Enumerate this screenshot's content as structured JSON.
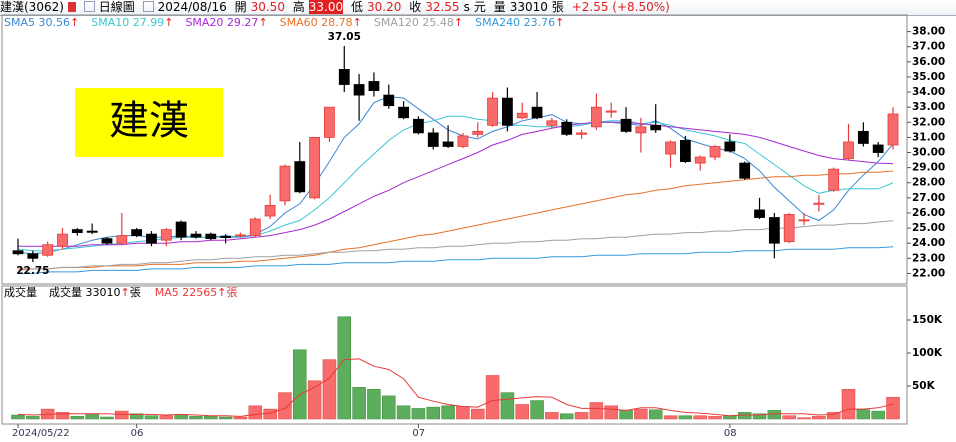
{
  "header": {
    "name": "建漢(3062)",
    "period": "日線圖",
    "date": "2024/08/16",
    "open_label": "開",
    "open": "30.50",
    "high_label": "高",
    "high": "33.00",
    "low_label": "低",
    "low": "30.20",
    "close_label": "收",
    "close": "32.55",
    "s": "s",
    "unit": "元",
    "volume_label": "量",
    "volume": "33010",
    "volume_unit": "張",
    "change": "+2.55 (+8.50%)"
  },
  "chart_data": {
    "type": "candlestick",
    "label_box": "建漢",
    "trend": "↑",
    "categories": [
      "2024/05/22",
      null,
      null,
      null,
      null,
      null,
      null,
      null,
      "06",
      null,
      null,
      null,
      null,
      null,
      null,
      null,
      null,
      null,
      null,
      null,
      null,
      null,
      null,
      null,
      null,
      null,
      null,
      "07",
      null,
      null,
      null,
      null,
      null,
      null,
      null,
      null,
      null,
      null,
      null,
      null,
      null,
      null,
      null,
      null,
      null,
      null,
      null,
      null,
      "08",
      null,
      null,
      null,
      null,
      null,
      null,
      null,
      null,
      null,
      null,
      null
    ],
    "open": [
      23.5,
      23.3,
      23.2,
      23.8,
      24.9,
      24.8,
      24.3,
      24.0,
      24.9,
      24.6,
      24.2,
      25.4,
      24.6,
      24.6,
      24.45,
      24.5,
      24.5,
      25.8,
      26.8,
      29.4,
      27.0,
      31.0,
      35.5,
      34.5,
      34.7,
      33.8,
      33.0,
      32.2,
      31.3,
      30.7,
      30.4,
      31.2,
      31.8,
      33.6,
      32.3,
      33.0,
      31.8,
      32.0,
      31.2,
      31.7,
      32.7,
      32.2,
      31.3,
      31.8,
      29.9,
      30.8,
      29.3,
      29.7,
      30.7,
      29.3,
      26.2,
      25.7,
      24.1,
      25.5,
      26.6,
      27.5,
      29.6,
      31.4,
      30.5,
      30.5
    ],
    "high": [
      24.3,
      23.5,
      24.1,
      25.0,
      25.0,
      25.3,
      24.4,
      26.0,
      25.0,
      24.8,
      25.0,
      25.5,
      24.8,
      24.7,
      24.6,
      24.7,
      25.7,
      27.2,
      29.2,
      30.7,
      31.0,
      33.0,
      37.05,
      35.2,
      35.3,
      34.5,
      33.4,
      32.4,
      31.6,
      31.8,
      31.3,
      32.0,
      34.0,
      34.3,
      33.3,
      34.0,
      32.3,
      32.2,
      31.5,
      33.9,
      33.3,
      33.0,
      32.3,
      33.2,
      30.8,
      31.1,
      29.8,
      30.5,
      31.2,
      29.4,
      27.0,
      26.0,
      26.0,
      26.0,
      27.2,
      29.0,
      31.9,
      32.0,
      30.7,
      33.0
    ],
    "low": [
      23.2,
      22.75,
      23.1,
      23.6,
      24.5,
      24.6,
      23.9,
      23.9,
      24.4,
      23.8,
      23.8,
      24.2,
      24.3,
      24.2,
      24.0,
      24.4,
      24.4,
      25.6,
      26.5,
      27.3,
      26.9,
      30.7,
      34.0,
      32.1,
      33.7,
      32.9,
      32.2,
      31.2,
      30.2,
      30.3,
      30.3,
      31.0,
      31.7,
      31.4,
      32.2,
      32.2,
      31.6,
      31.1,
      30.9,
      31.5,
      32.3,
      31.3,
      30.0,
      31.3,
      29.0,
      29.3,
      28.8,
      29.5,
      30.0,
      28.2,
      25.6,
      23.0,
      24.0,
      25.2,
      26.1,
      27.4,
      29.5,
      30.4,
      29.7,
      30.2
    ],
    "close": [
      23.3,
      23.0,
      23.9,
      24.6,
      24.7,
      24.75,
      24.0,
      24.5,
      24.5,
      24.0,
      24.9,
      24.4,
      24.4,
      24.3,
      24.4,
      24.55,
      25.6,
      26.5,
      29.1,
      27.4,
      31.0,
      33.0,
      34.5,
      33.8,
      34.1,
      33.1,
      32.3,
      31.3,
      30.4,
      30.4,
      31.1,
      31.4,
      33.6,
      31.8,
      32.6,
      32.3,
      32.1,
      31.2,
      31.3,
      33.0,
      32.75,
      31.4,
      31.7,
      31.5,
      30.7,
      29.4,
      29.7,
      30.4,
      30.1,
      28.3,
      25.7,
      24.0,
      25.9,
      25.55,
      26.65,
      28.9,
      30.7,
      30.6,
      30.0,
      32.55
    ],
    "up_color": "#f86b6b",
    "up_border": "#e83a3a",
    "down_color": "#000000",
    "ylim": [
      21.3,
      39.1
    ],
    "yticks": [
      {
        "value": 22,
        "label": "22.00"
      },
      {
        "value": 23,
        "label": "23.00"
      },
      {
        "value": 24,
        "label": "24.00"
      },
      {
        "value": 25,
        "label": "25.00"
      },
      {
        "value": 26,
        "label": "26.00"
      },
      {
        "value": 27,
        "label": "27.00"
      },
      {
        "value": 28,
        "label": "28.00"
      },
      {
        "value": 29,
        "label": "29.00"
      },
      {
        "value": 30,
        "label": "30.00"
      },
      {
        "value": 31,
        "label": "31.00"
      },
      {
        "value": 32,
        "label": "32.00"
      },
      {
        "value": 33,
        "label": "33.00"
      },
      {
        "value": 34,
        "label": "34.00"
      },
      {
        "value": 35,
        "label": "35.00"
      },
      {
        "value": 36,
        "label": "36.00"
      },
      {
        "value": 37,
        "label": "37.00"
      },
      {
        "value": 38,
        "label": "38.00"
      }
    ],
    "series": [
      {
        "name": "SMA5",
        "color": "#3a86d4",
        "values": [
          23.4,
          23.3,
          23.4,
          23.6,
          23.9,
          24.2,
          24.4,
          24.5,
          24.5,
          24.4,
          24.4,
          24.5,
          24.4,
          24.4,
          24.5,
          24.4,
          24.6,
          25.1,
          26.0,
          26.6,
          27.9,
          29.4,
          31.0,
          31.9,
          33.3,
          33.7,
          33.6,
          32.9,
          32.2,
          31.5,
          31.1,
          30.9,
          31.4,
          31.7,
          32.1,
          32.3,
          32.5,
          32.0,
          31.9,
          32.0,
          32.0,
          31.9,
          31.8,
          32.1,
          31.6,
          30.9,
          30.6,
          30.3,
          30.1,
          29.6,
          28.8,
          27.7,
          26.8,
          25.9,
          25.5,
          26.2,
          27.5,
          28.5,
          29.4,
          30.56
        ]
      },
      {
        "name": "SMA10",
        "color": "#3cc6d0",
        "values": [
          23.6,
          23.5,
          23.5,
          23.6,
          23.7,
          23.8,
          23.9,
          24.0,
          24.1,
          24.2,
          24.3,
          24.4,
          24.4,
          24.4,
          24.4,
          24.4,
          24.5,
          24.8,
          25.2,
          25.5,
          26.2,
          27.0,
          28.0,
          29.0,
          29.9,
          30.8,
          31.5,
          31.9,
          32.1,
          32.4,
          32.4,
          32.2,
          32.1,
          31.8,
          31.8,
          31.7,
          31.7,
          31.7,
          31.8,
          32.0,
          32.1,
          32.1,
          31.9,
          32.0,
          31.8,
          31.5,
          31.3,
          31.1,
          30.8,
          30.6,
          29.9,
          29.2,
          28.5,
          27.8,
          27.3,
          27.5,
          27.6,
          27.6,
          27.6,
          27.99
        ]
      },
      {
        "name": "SMA20",
        "color": "#a52ad6",
        "values": [
          23.8,
          23.8,
          23.8,
          23.8,
          23.8,
          23.9,
          23.9,
          23.9,
          24.0,
          24.0,
          24.0,
          24.1,
          24.1,
          24.2,
          24.2,
          24.3,
          24.4,
          24.5,
          24.7,
          24.9,
          25.2,
          25.6,
          26.1,
          26.6,
          27.1,
          27.5,
          28.0,
          28.4,
          28.8,
          29.2,
          29.6,
          30.0,
          30.5,
          30.8,
          31.2,
          31.4,
          31.6,
          31.8,
          31.9,
          32.0,
          32.0,
          32.0,
          31.9,
          31.8,
          31.7,
          31.6,
          31.5,
          31.4,
          31.3,
          31.2,
          31.0,
          30.7,
          30.4,
          30.1,
          29.8,
          29.6,
          29.5,
          29.4,
          29.3,
          29.27
        ]
      },
      {
        "name": "SMA60",
        "color": "#e8712a",
        "values": [
          22.3,
          22.3,
          22.3,
          22.4,
          22.4,
          22.4,
          22.5,
          22.5,
          22.5,
          22.6,
          22.6,
          22.6,
          22.7,
          22.7,
          22.7,
          22.8,
          22.8,
          22.9,
          23.0,
          23.1,
          23.2,
          23.4,
          23.6,
          23.7,
          23.9,
          24.1,
          24.3,
          24.5,
          24.6,
          24.8,
          25.0,
          25.2,
          25.4,
          25.6,
          25.8,
          26.0,
          26.2,
          26.4,
          26.6,
          26.8,
          27.0,
          27.2,
          27.3,
          27.5,
          27.6,
          27.8,
          27.9,
          28.0,
          28.1,
          28.2,
          28.3,
          28.4,
          28.4,
          28.5,
          28.5,
          28.6,
          28.6,
          28.7,
          28.7,
          28.78
        ]
      },
      {
        "name": "SMA120",
        "color": "#a0a0a0",
        "values": [
          22.2,
          22.3,
          22.3,
          22.4,
          22.4,
          22.5,
          22.5,
          22.6,
          22.6,
          22.7,
          22.7,
          22.8,
          22.9,
          22.9,
          23.0,
          23.0,
          23.1,
          23.1,
          23.2,
          23.2,
          23.3,
          23.4,
          23.4,
          23.5,
          23.5,
          23.6,
          23.6,
          23.7,
          23.7,
          23.8,
          23.8,
          23.9,
          24.0,
          24.0,
          24.1,
          24.1,
          24.2,
          24.2,
          24.3,
          24.3,
          24.4,
          24.4,
          24.5,
          24.6,
          24.6,
          24.7,
          24.7,
          24.8,
          24.8,
          24.9,
          24.9,
          25.0,
          25.0,
          25.1,
          25.2,
          25.2,
          25.3,
          25.3,
          25.4,
          25.48
        ]
      },
      {
        "name": "SMA240",
        "color": "#3399dd",
        "values": [
          22.0,
          22.0,
          22.1,
          22.1,
          22.1,
          22.2,
          22.2,
          22.2,
          22.2,
          22.3,
          22.3,
          22.3,
          22.4,
          22.4,
          22.4,
          22.4,
          22.5,
          22.5,
          22.5,
          22.6,
          22.6,
          22.6,
          22.7,
          22.7,
          22.7,
          22.7,
          22.8,
          22.8,
          22.8,
          22.9,
          22.9,
          22.9,
          23.0,
          23.0,
          23.0,
          23.0,
          23.1,
          23.1,
          23.1,
          23.2,
          23.2,
          23.2,
          23.3,
          23.3,
          23.3,
          23.3,
          23.4,
          23.4,
          23.4,
          23.5,
          23.5,
          23.5,
          23.6,
          23.6,
          23.6,
          23.6,
          23.7,
          23.7,
          23.7,
          23.76
        ]
      }
    ],
    "volume": {
      "type": "bar",
      "title": "成交量",
      "label": "成交量",
      "unit": "張",
      "up_color": "#f86b6b",
      "down_color": "#5cad5c",
      "values": [
        6000,
        4000,
        15000,
        10000,
        4000,
        7000,
        3000,
        12000,
        8000,
        5000,
        5000,
        7000,
        4000,
        4000,
        3000,
        3000,
        20000,
        15000,
        40000,
        105000,
        58000,
        90000,
        155000,
        48000,
        45000,
        35000,
        20000,
        16000,
        18000,
        20000,
        19000,
        15000,
        66000,
        40000,
        22000,
        28000,
        10000,
        8000,
        10000,
        25000,
        20000,
        13000,
        15000,
        14000,
        5000,
        5000,
        5000,
        4000,
        5000,
        10000,
        8000,
        13000,
        5000,
        2000,
        4000,
        10000,
        45000,
        14000,
        12000,
        33010
      ],
      "ma_name": "MA5",
      "ma_color": "#e83a3a",
      "ma_values": [
        7000,
        6000,
        7000,
        8000,
        8000,
        8000,
        8000,
        7000,
        7000,
        7000,
        6000,
        7000,
        6000,
        5000,
        5000,
        4000,
        7000,
        9000,
        16000,
        37000,
        48000,
        62000,
        90000,
        91000,
        80000,
        75000,
        61000,
        33000,
        27000,
        22000,
        19000,
        18000,
        28000,
        30000,
        32000,
        34000,
        33000,
        22000,
        16000,
        16000,
        15000,
        13000,
        17000,
        17000,
        13000,
        10000,
        9000,
        7000,
        5000,
        6000,
        6000,
        8000,
        8000,
        8000,
        6000,
        7000,
        15000,
        15000,
        17000,
        22565
      ],
      "ylim": [
        0,
        200000
      ],
      "yticks": [
        {
          "value": 50000,
          "label": "50K"
        },
        {
          "value": 100000,
          "label": "100K"
        },
        {
          "value": 150000,
          "label": "150K"
        }
      ]
    }
  }
}
